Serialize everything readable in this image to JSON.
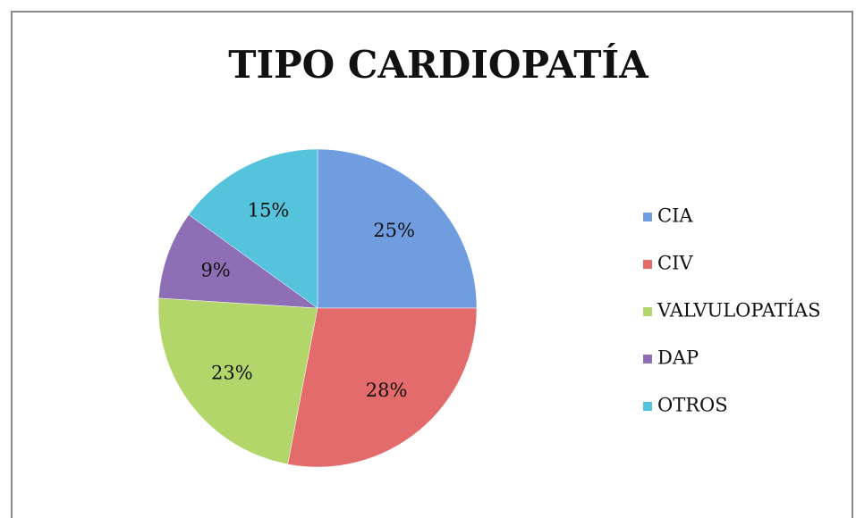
{
  "chart_data": {
    "type": "pie",
    "title": "TIPO CARDIOPATÍA",
    "categories": [
      "CIA",
      "CIV",
      "VALVULOPATÍAS",
      "DAP",
      "OTROS"
    ],
    "values": [
      25,
      28,
      23,
      9,
      15
    ],
    "value_labels": [
      "25%",
      "28%",
      "23%",
      "9%",
      "15%"
    ],
    "colors": [
      "#6f9de0",
      "#e36b6b",
      "#b3d66a",
      "#8e6fb5",
      "#55c3dc"
    ],
    "legend": "right"
  }
}
